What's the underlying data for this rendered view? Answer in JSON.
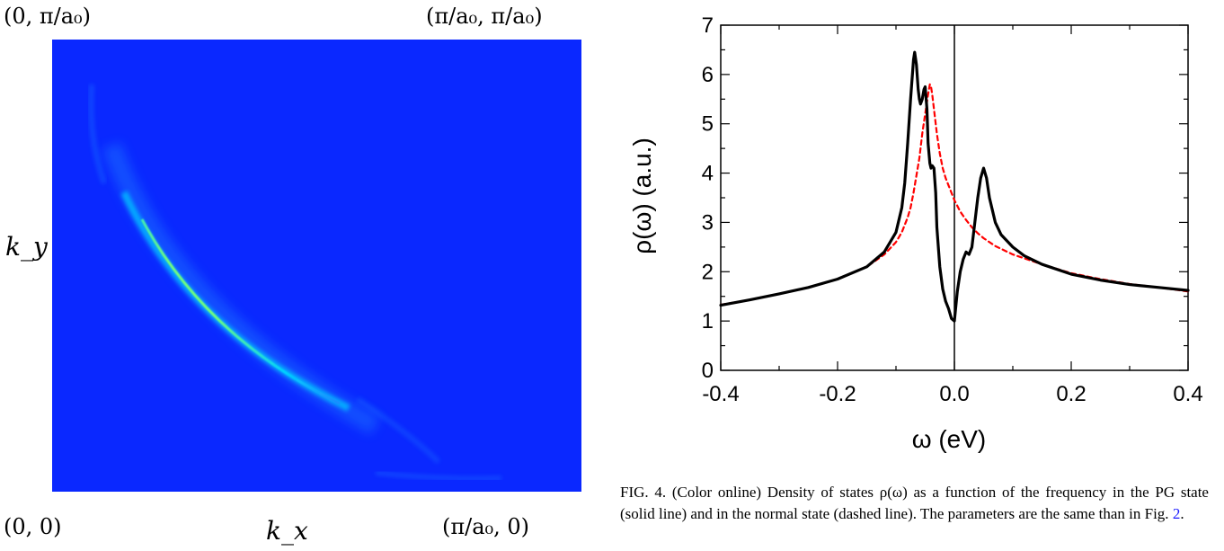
{
  "left_panel": {
    "corner_top_left": "(0, π/a₀)",
    "corner_top_right": "(π/a₀, π/a₀)",
    "corner_bottom_left": "(0, 0)",
    "corner_bottom_right": "(π/a₀, 0)",
    "xlabel": "k_x",
    "ylabel": "k_y",
    "colors": {
      "background": "#0a28ff",
      "arc_low": "#1f7dff",
      "arc_mid": "#00d2ff",
      "arc_high": "#73ff7a"
    }
  },
  "caption": {
    "label": "FIG. 4.",
    "text": "(Color online) Density of states ρ(ω) as a function of the frequency in the PG state (solid line) and in the normal state (dashed line). The parameters are the same than in Fig.",
    "ref": "2",
    "end": "."
  },
  "chart_data": [
    {
      "type": "heatmap",
      "title": "",
      "xlabel": "k_x",
      "ylabel": "k_y",
      "note": "spectral weight concentrated along a curved arc from upper-left toward lower-right; brightest (green) near the middle of the arc"
    },
    {
      "type": "line",
      "xlabel": "ω (eV)",
      "ylabel": "ρ(ω) (a.u.)",
      "xlim": [
        -0.4,
        0.4
      ],
      "ylim": [
        0,
        7
      ],
      "xticks": [
        "-0.4",
        "-0.2",
        "0.0",
        "0.2",
        "0.4"
      ],
      "yticks": [
        "0",
        "1",
        "2",
        "3",
        "4",
        "5",
        "6",
        "7"
      ],
      "vline_x": 0.0,
      "series": [
        {
          "color": "#000000",
          "style": "solid",
          "x": [
            -0.4,
            -0.35,
            -0.3,
            -0.25,
            -0.2,
            -0.15,
            -0.12,
            -0.1,
            -0.09,
            -0.085,
            -0.08,
            -0.075,
            -0.07,
            -0.068,
            -0.065,
            -0.062,
            -0.06,
            -0.058,
            -0.055,
            -0.052,
            -0.05,
            -0.047,
            -0.045,
            -0.042,
            -0.04,
            -0.038,
            -0.035,
            -0.032,
            -0.03,
            -0.025,
            -0.02,
            -0.015,
            -0.01,
            -0.005,
            0.0,
            0.005,
            0.01,
            0.015,
            0.02,
            0.025,
            0.03,
            0.035,
            0.04,
            0.045,
            0.05,
            0.055,
            0.06,
            0.07,
            0.08,
            0.1,
            0.12,
            0.15,
            0.2,
            0.25,
            0.3,
            0.35,
            0.4
          ],
          "y": [
            1.32,
            1.43,
            1.55,
            1.68,
            1.85,
            2.1,
            2.4,
            2.8,
            3.3,
            3.8,
            4.6,
            5.5,
            6.3,
            6.45,
            6.2,
            5.7,
            5.5,
            5.4,
            5.5,
            5.7,
            5.75,
            5.3,
            4.6,
            4.2,
            4.1,
            4.15,
            4.1,
            3.6,
            2.9,
            2.1,
            1.65,
            1.4,
            1.25,
            1.05,
            1.0,
            1.6,
            2.0,
            2.25,
            2.4,
            2.35,
            2.5,
            3.0,
            3.5,
            3.9,
            4.1,
            3.9,
            3.5,
            3.0,
            2.75,
            2.5,
            2.32,
            2.15,
            1.95,
            1.83,
            1.74,
            1.68,
            1.62
          ]
        },
        {
          "color": "#ff0000",
          "style": "dashed",
          "x": [
            -0.4,
            -0.35,
            -0.3,
            -0.25,
            -0.2,
            -0.15,
            -0.12,
            -0.1,
            -0.09,
            -0.08,
            -0.075,
            -0.07,
            -0.065,
            -0.06,
            -0.055,
            -0.05,
            -0.045,
            -0.042,
            -0.04,
            -0.038,
            -0.035,
            -0.032,
            -0.03,
            -0.025,
            -0.02,
            -0.015,
            -0.01,
            0.0,
            0.01,
            0.02,
            0.03,
            0.04,
            0.05,
            0.07,
            0.1,
            0.15,
            0.2,
            0.25,
            0.3,
            0.35,
            0.4
          ],
          "y": [
            1.33,
            1.43,
            1.55,
            1.68,
            1.85,
            2.1,
            2.35,
            2.6,
            2.8,
            3.1,
            3.3,
            3.6,
            3.95,
            4.3,
            4.8,
            5.2,
            5.6,
            5.8,
            5.75,
            5.6,
            5.3,
            5.0,
            4.8,
            4.4,
            4.1,
            3.9,
            3.75,
            3.45,
            3.22,
            3.05,
            2.9,
            2.78,
            2.68,
            2.52,
            2.35,
            2.15,
            1.97,
            1.85,
            1.75,
            1.68,
            1.6
          ]
        }
      ]
    }
  ]
}
